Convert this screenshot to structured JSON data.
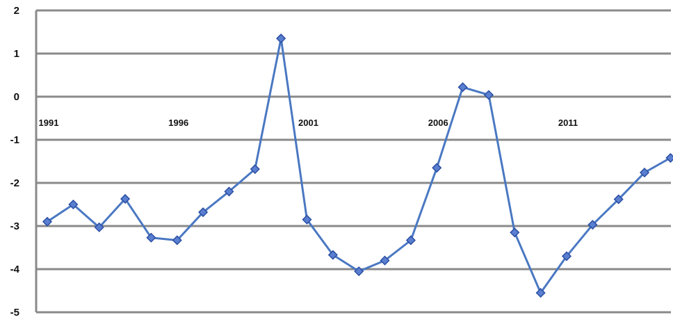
{
  "chart_data": {
    "type": "line",
    "title": "",
    "xlabel": "",
    "ylabel": "",
    "x": [
      1991,
      1992,
      1993,
      1994,
      1995,
      1996,
      1997,
      1998,
      1999,
      2000,
      2001,
      2002,
      2003,
      2004,
      2005,
      2006,
      2007,
      2008,
      2009,
      2010,
      2011,
      2012,
      2013,
      2014,
      2015
    ],
    "series": [
      {
        "values": [
          -2.9,
          -2.5,
          -3.03,
          -2.37,
          -3.27,
          -3.33,
          -2.68,
          -2.2,
          -1.68,
          1.35,
          -2.85,
          -3.67,
          -4.05,
          -3.8,
          -3.33,
          -1.65,
          0.22,
          0.04,
          -3.15,
          -4.55,
          -3.7,
          -2.97,
          -2.38,
          -1.76,
          -1.42
        ],
        "color": "#4a78c2",
        "marker": "diamond"
      }
    ],
    "ylim": [
      -5,
      2
    ],
    "y_ticks": [
      "2",
      "1",
      "0",
      "-1",
      "-2",
      "-3",
      "-4",
      "-5"
    ],
    "x_tick_labels": [
      "1991",
      "1996",
      "2001",
      "2006",
      "2011"
    ],
    "x_tick_years": [
      1991,
      1996,
      2001,
      2006,
      2011
    ],
    "x_axis_crosses_at": 0,
    "grid": true,
    "legend": "none"
  }
}
